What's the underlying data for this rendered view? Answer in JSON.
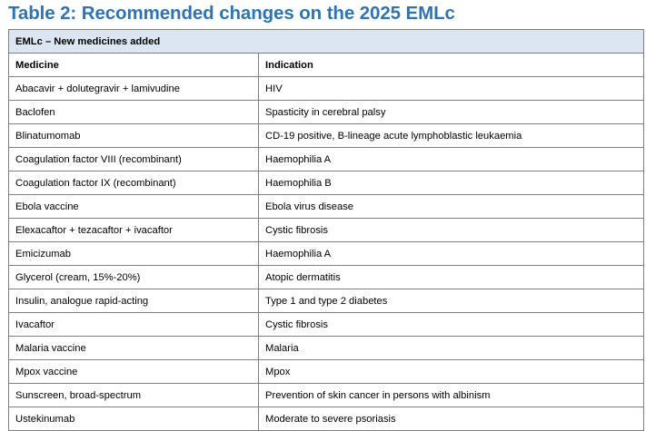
{
  "title": "Table 2: Recommended changes on the 2025 EMLc",
  "table": {
    "section_header": "EMLc – New medicines added",
    "columns": [
      "Medicine",
      "Indication"
    ],
    "rows": [
      {
        "medicine": "Abacavir + dolutegravir + lamivudine",
        "indication": "HIV"
      },
      {
        "medicine": "Baclofen",
        "indication": "Spasticity in cerebral palsy"
      },
      {
        "medicine": "Blinatumomab",
        "indication": "CD-19 positive, B-lineage acute lymphoblastic leukaemia"
      },
      {
        "medicine": "Coagulation factor VIII (recombinant)",
        "indication": "Haemophilia A"
      },
      {
        "medicine": "Coagulation factor IX (recombinant)",
        "indication": "Haemophilia B"
      },
      {
        "medicine": "Ebola vaccine",
        "indication": "Ebola virus disease"
      },
      {
        "medicine": "Elexacaftor + tezacaftor + ivacaftor",
        "indication": "Cystic fibrosis"
      },
      {
        "medicine": "Emicizumab",
        "indication": "Haemophilia A"
      },
      {
        "medicine": "Glycerol (cream, 15%-20%)",
        "indication": "Atopic dermatitis"
      },
      {
        "medicine": "Insulin, analogue rapid-acting",
        "indication": "Type 1 and type 2 diabetes"
      },
      {
        "medicine": "Ivacaftor",
        "indication": "Cystic fibrosis"
      },
      {
        "medicine": "Malaria vaccine",
        "indication": "Malaria"
      },
      {
        "medicine": "Mpox vaccine",
        "indication": "Mpox"
      },
      {
        "medicine": "Sunscreen, broad-spectrum",
        "indication": "Prevention of skin cancer in persons with albinism"
      },
      {
        "medicine": "Ustekinumab",
        "indication": "Moderate to severe psoriasis"
      }
    ]
  },
  "colors": {
    "title": "#2e74b5",
    "section_header_bg": "#dce6f2",
    "border": "#7f7f7f"
  }
}
